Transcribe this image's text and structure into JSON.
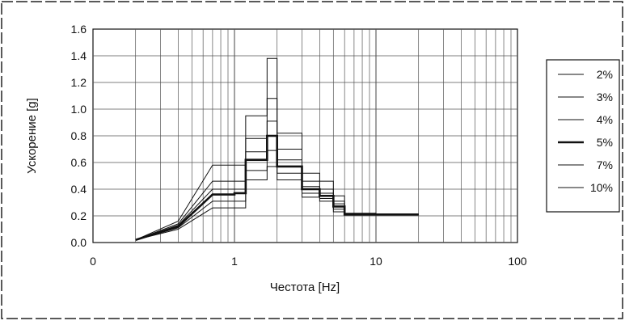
{
  "chart_data": {
    "type": "line",
    "title": "",
    "xlabel": "Честота [Hz]",
    "ylabel": "Ускорение [g]",
    "x_scale": "log",
    "xlim": [
      0.1,
      100
    ],
    "ylim": [
      0,
      1.6
    ],
    "x_tick_labels": [
      "0",
      "1",
      "10",
      "100"
    ],
    "y_ticks": [
      "0.0",
      "0.2",
      "0.4",
      "0.6",
      "0.8",
      "1.0",
      "1.2",
      "1.4",
      "1.6"
    ],
    "grid": true,
    "legend_position": "right",
    "x": [
      0.2,
      0.4,
      0.7,
      1.0,
      1.2,
      1.7,
      2.0,
      3.0,
      4.0,
      5.0,
      6.0,
      10.0,
      20.0
    ],
    "series": [
      {
        "name": "2%",
        "bold": false,
        "values": [
          0.02,
          0.16,
          0.58,
          0.58,
          0.95,
          1.38,
          0.82,
          0.52,
          0.46,
          0.35,
          0.22,
          0.21,
          0.21
        ]
      },
      {
        "name": "3%",
        "bold": false,
        "values": [
          0.02,
          0.14,
          0.46,
          0.46,
          0.78,
          1.08,
          0.7,
          0.46,
          0.4,
          0.31,
          0.21,
          0.21,
          0.21
        ]
      },
      {
        "name": "4%",
        "bold": false,
        "values": [
          0.02,
          0.13,
          0.4,
          0.4,
          0.68,
          0.91,
          0.62,
          0.42,
          0.37,
          0.29,
          0.21,
          0.21,
          0.21
        ]
      },
      {
        "name": "5%",
        "bold": true,
        "values": [
          0.02,
          0.12,
          0.36,
          0.37,
          0.62,
          0.8,
          0.57,
          0.4,
          0.35,
          0.27,
          0.21,
          0.21,
          0.21
        ]
      },
      {
        "name": "7%",
        "bold": false,
        "values": [
          0.02,
          0.11,
          0.31,
          0.31,
          0.54,
          0.69,
          0.52,
          0.37,
          0.33,
          0.25,
          0.21,
          0.21,
          0.21
        ]
      },
      {
        "name": "10%",
        "bold": false,
        "values": [
          0.02,
          0.1,
          0.26,
          0.26,
          0.47,
          0.57,
          0.47,
          0.34,
          0.31,
          0.23,
          0.21,
          0.21,
          0.21
        ]
      }
    ]
  }
}
